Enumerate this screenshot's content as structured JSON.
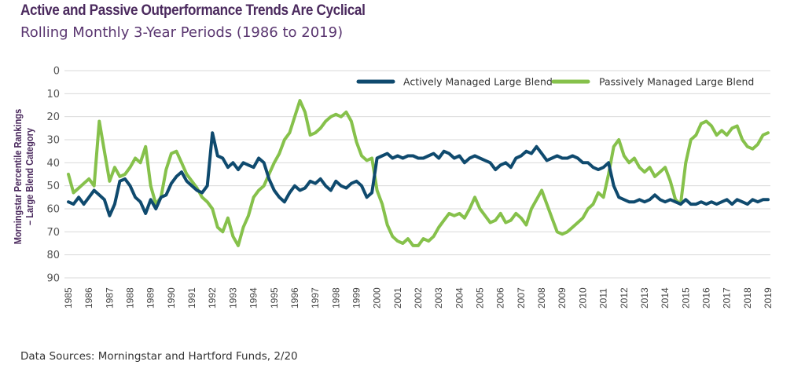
{
  "header": {
    "title": "Active and Passive Outperformance Trends Are Cyclical",
    "subtitle": "Rolling Monthly 3-Year Periods (1986 to 2019)"
  },
  "footer": {
    "source": "Data Sources: Morningstar and Hartford Funds, 2/20"
  },
  "colors": {
    "active": "#0f4a6e",
    "passive": "#86c14b",
    "title": "#4b2a5e",
    "grid": "#d9d9d9"
  },
  "chart_data": {
    "type": "line",
    "title": "Active and Passive Outperformance Trends Are Cyclical",
    "subtitle": "Rolling Monthly 3-Year Periods (1986 to 2019)",
    "xlabel": "",
    "ylabel": "Morningstar Percentile Rankings – Large Blend Category",
    "ylabel_lines": [
      "Morningstar Percentile Rankings",
      "– Large Blend Category"
    ],
    "ylim": [
      0,
      90
    ],
    "y_inverted": true,
    "y_ticks": [
      0,
      10,
      20,
      30,
      40,
      50,
      60,
      70,
      80,
      90
    ],
    "xlim": [
      1985,
      2019
    ],
    "x_ticks": [
      "1985",
      "1986",
      "1987",
      "1988",
      "1989",
      "1990",
      "1991",
      "1992",
      "1993",
      "1994",
      "1995",
      "1996",
      "1997",
      "1998",
      "1999",
      "2000",
      "2001",
      "2002",
      "2003",
      "2004",
      "2005",
      "2006",
      "2007",
      "2008",
      "2009",
      "2010",
      "2011",
      "2012",
      "2013",
      "2014",
      "2015",
      "2016",
      "2017",
      "2018",
      "2019"
    ],
    "grid": true,
    "legend_position": "top-right",
    "x": [
      1985.0,
      1985.25,
      1985.5,
      1985.75,
      1986.0,
      1986.25,
      1986.5,
      1986.75,
      1987.0,
      1987.25,
      1987.5,
      1987.75,
      1988.0,
      1988.25,
      1988.5,
      1988.75,
      1989.0,
      1989.25,
      1989.5,
      1989.75,
      1990.0,
      1990.25,
      1990.5,
      1990.75,
      1991.0,
      1991.25,
      1991.5,
      1991.75,
      1992.0,
      1992.25,
      1992.5,
      1992.75,
      1993.0,
      1993.25,
      1993.5,
      1993.75,
      1994.0,
      1994.25,
      1994.5,
      1994.75,
      1995.0,
      1995.25,
      1995.5,
      1995.75,
      1996.0,
      1996.25,
      1996.5,
      1996.75,
      1997.0,
      1997.25,
      1997.5,
      1997.75,
      1998.0,
      1998.25,
      1998.5,
      1998.75,
      1999.0,
      1999.25,
      1999.5,
      1999.75,
      2000.0,
      2000.25,
      2000.5,
      2000.75,
      2001.0,
      2001.25,
      2001.5,
      2001.75,
      2002.0,
      2002.25,
      2002.5,
      2002.75,
      2003.0,
      2003.25,
      2003.5,
      2003.75,
      2004.0,
      2004.25,
      2004.5,
      2004.75,
      2005.0,
      2005.25,
      2005.5,
      2005.75,
      2006.0,
      2006.25,
      2006.5,
      2006.75,
      2007.0,
      2007.25,
      2007.5,
      2007.75,
      2008.0,
      2008.25,
      2008.5,
      2008.75,
      2009.0,
      2009.25,
      2009.5,
      2009.75,
      2010.0,
      2010.25,
      2010.5,
      2010.75,
      2011.0,
      2011.25,
      2011.5,
      2011.75,
      2012.0,
      2012.25,
      2012.5,
      2012.75,
      2013.0,
      2013.25,
      2013.5,
      2013.75,
      2014.0,
      2014.25,
      2014.5,
      2014.75,
      2015.0,
      2015.25,
      2015.5,
      2015.75,
      2016.0,
      2016.25,
      2016.5,
      2016.75,
      2017.0,
      2017.25,
      2017.5,
      2017.75,
      2018.0,
      2018.25,
      2018.5,
      2018.75,
      2019.0
    ],
    "series": [
      {
        "name": "Actively Managed Large Blend",
        "color": "#0f4a6e",
        "values": [
          57,
          58,
          55,
          58,
          55,
          52,
          54,
          56,
          63,
          58,
          48,
          47,
          50,
          55,
          57,
          62,
          56,
          60,
          55,
          54,
          49,
          46,
          44,
          48,
          50,
          52,
          53,
          50,
          27,
          37,
          38,
          42,
          40,
          43,
          40,
          41,
          42,
          38,
          40,
          47,
          52,
          55,
          57,
          53,
          50,
          52,
          51,
          48,
          49,
          47,
          50,
          52,
          48,
          50,
          51,
          49,
          48,
          50,
          55,
          53,
          38,
          37,
          36,
          38,
          37,
          38,
          37,
          37,
          38,
          38,
          37,
          36,
          38,
          35,
          36,
          38,
          37,
          40,
          38,
          37,
          38,
          39,
          40,
          43,
          41,
          40,
          42,
          38,
          37,
          35,
          36,
          33,
          36,
          39,
          38,
          37,
          38,
          38,
          37,
          38,
          40,
          40,
          42,
          43,
          42,
          40,
          50,
          55,
          56,
          57,
          57,
          56,
          57,
          56,
          54,
          56,
          57,
          56,
          57,
          58,
          56,
          58,
          58,
          57,
          58,
          57,
          58,
          57,
          56,
          58,
          56,
          57,
          58,
          56,
          57,
          56,
          56
        ]
      },
      {
        "name": "Passively Managed Large Blend",
        "color": "#86c14b",
        "values": [
          45,
          53,
          51,
          49,
          47,
          50,
          22,
          35,
          48,
          42,
          46,
          45,
          42,
          38,
          40,
          33,
          50,
          58,
          55,
          43,
          36,
          35,
          40,
          45,
          48,
          51,
          55,
          57,
          60,
          68,
          70,
          64,
          72,
          76,
          68,
          63,
          55,
          52,
          50,
          45,
          40,
          36,
          30,
          27,
          20,
          13,
          18,
          28,
          27,
          25,
          22,
          20,
          19,
          20,
          18,
          22,
          31,
          37,
          39,
          38,
          52,
          58,
          67,
          72,
          74,
          75,
          73,
          76,
          76,
          73,
          74,
          72,
          68,
          65,
          62,
          63,
          62,
          64,
          60,
          55,
          60,
          63,
          66,
          65,
          62,
          66,
          65,
          62,
          64,
          67,
          60,
          56,
          52,
          58,
          64,
          70,
          71,
          70,
          68,
          66,
          64,
          60,
          58,
          53,
          55,
          45,
          33,
          30,
          37,
          40,
          38,
          42,
          44,
          42,
          46,
          44,
          42,
          48,
          56,
          58,
          40,
          30,
          28,
          23,
          22,
          24,
          28,
          26,
          28,
          25,
          24,
          30,
          33,
          34,
          32,
          28,
          27
        ]
      }
    ]
  }
}
